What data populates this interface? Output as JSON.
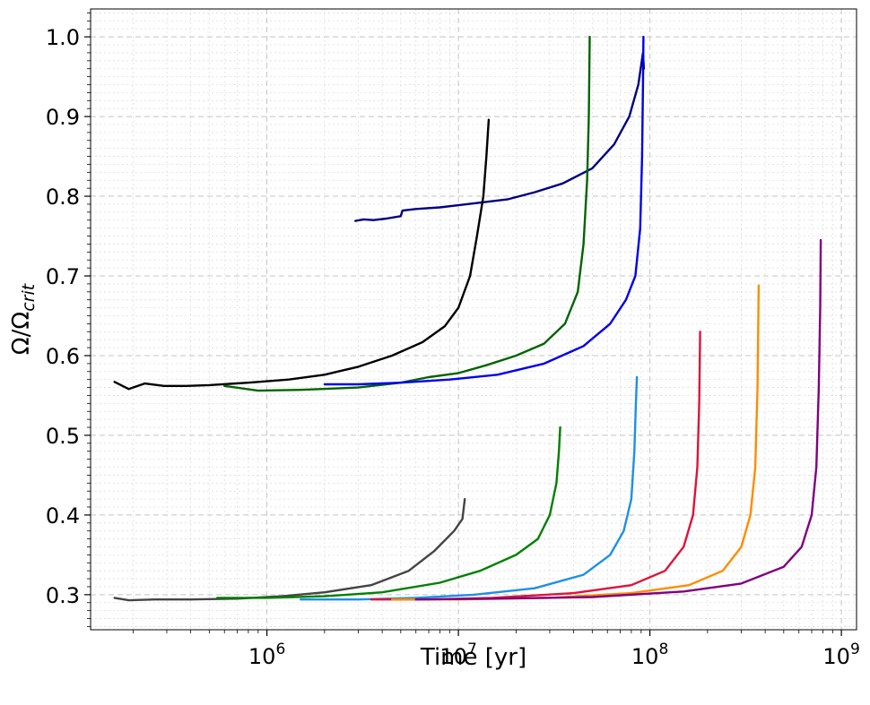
{
  "chart_data": {
    "type": "line",
    "xlabel": "Time [yr]",
    "ylabel": "Ω/Ω",
    "ylabel_sub": "crit",
    "xscale": "log",
    "xlim": [
      120000,
      1200000000
    ],
    "ylim": [
      0.256,
      1.035
    ],
    "grid": true,
    "x_ticks": [
      {
        "value": 1000000,
        "base": "10",
        "exp": "6"
      },
      {
        "value": 10000000,
        "base": "10",
        "exp": "7"
      },
      {
        "value": 100000000,
        "base": "10",
        "exp": "8"
      },
      {
        "value": 1000000000,
        "base": "10",
        "exp": "9"
      }
    ],
    "y_ticks": [
      {
        "value": 0.3,
        "label": "0.3"
      },
      {
        "value": 0.4,
        "label": "0.4"
      },
      {
        "value": 0.5,
        "label": "0.5"
      },
      {
        "value": 0.6,
        "label": "0.6"
      },
      {
        "value": 0.7,
        "label": "0.7"
      },
      {
        "value": 0.8,
        "label": "0.8"
      },
      {
        "value": 0.9,
        "label": "0.9"
      },
      {
        "value": 1.0,
        "label": "1.0"
      }
    ],
    "series": [
      {
        "color": "#000080",
        "points": [
          [
            2900000,
            0.769
          ],
          [
            3200000,
            0.771
          ],
          [
            3600000,
            0.77
          ],
          [
            4200000,
            0.772
          ],
          [
            5000000,
            0.775
          ],
          [
            5100000,
            0.782
          ],
          [
            6000000,
            0.784
          ],
          [
            8000000,
            0.786
          ],
          [
            12000000,
            0.791
          ],
          [
            18000000,
            0.796
          ],
          [
            25000000,
            0.805
          ],
          [
            35000000,
            0.816
          ],
          [
            50000000,
            0.835
          ],
          [
            65000000,
            0.865
          ],
          [
            78000000,
            0.9
          ],
          [
            87000000,
            0.94
          ],
          [
            92000000,
            0.98
          ],
          [
            93000000,
            0.96
          ]
        ]
      },
      {
        "color": "#000000",
        "points": [
          [
            160000,
            0.567
          ],
          [
            190000,
            0.558
          ],
          [
            230000,
            0.565
          ],
          [
            290000,
            0.562
          ],
          [
            380000,
            0.562
          ],
          [
            500000,
            0.563
          ],
          [
            800000,
            0.566
          ],
          [
            1300000,
            0.57
          ],
          [
            2000000,
            0.576
          ],
          [
            3000000,
            0.586
          ],
          [
            4500000,
            0.6
          ],
          [
            6500000,
            0.617
          ],
          [
            8500000,
            0.637
          ],
          [
            10000000,
            0.66
          ],
          [
            11500000,
            0.7
          ],
          [
            12500000,
            0.75
          ],
          [
            13500000,
            0.8
          ],
          [
            14000000,
            0.85
          ],
          [
            14400000,
            0.896
          ]
        ]
      },
      {
        "color": "#006400",
        "points": [
          [
            600000,
            0.562
          ],
          [
            900000,
            0.556
          ],
          [
            1500000,
            0.557
          ],
          [
            3000000,
            0.56
          ],
          [
            5000000,
            0.566
          ],
          [
            7000000,
            0.573
          ],
          [
            10000000,
            0.578
          ],
          [
            14000000,
            0.588
          ],
          [
            20000000,
            0.6
          ],
          [
            28000000,
            0.615
          ],
          [
            36000000,
            0.64
          ],
          [
            42000000,
            0.68
          ],
          [
            45000000,
            0.74
          ],
          [
            47000000,
            0.82
          ],
          [
            48000000,
            0.9
          ],
          [
            48500000,
            1.0
          ]
        ]
      },
      {
        "color": "#0000ee",
        "points": [
          [
            2000000,
            0.564
          ],
          [
            3000000,
            0.564
          ],
          [
            5000000,
            0.566
          ],
          [
            9000000,
            0.57
          ],
          [
            16000000,
            0.576
          ],
          [
            28000000,
            0.59
          ],
          [
            45000000,
            0.612
          ],
          [
            62000000,
            0.64
          ],
          [
            75000000,
            0.67
          ],
          [
            84000000,
            0.7
          ],
          [
            89000000,
            0.76
          ],
          [
            91000000,
            0.85
          ],
          [
            92000000,
            0.94
          ],
          [
            92500000,
            1.0
          ]
        ]
      },
      {
        "color": "#444444",
        "points": [
          [
            160000,
            0.296
          ],
          [
            190000,
            0.293
          ],
          [
            260000,
            0.294
          ],
          [
            400000,
            0.294
          ],
          [
            700000,
            0.295
          ],
          [
            1200000,
            0.298
          ],
          [
            2000000,
            0.303
          ],
          [
            3500000,
            0.312
          ],
          [
            5500000,
            0.33
          ],
          [
            7500000,
            0.355
          ],
          [
            9500000,
            0.38
          ],
          [
            10500000,
            0.395
          ],
          [
            10800000,
            0.42
          ]
        ]
      },
      {
        "color": "#008000",
        "points": [
          [
            550000,
            0.296
          ],
          [
            1000000,
            0.296
          ],
          [
            2000000,
            0.298
          ],
          [
            4000000,
            0.303
          ],
          [
            8000000,
            0.315
          ],
          [
            13000000,
            0.33
          ],
          [
            20000000,
            0.35
          ],
          [
            26000000,
            0.37
          ],
          [
            30000000,
            0.4
          ],
          [
            32500000,
            0.44
          ],
          [
            33500000,
            0.48
          ],
          [
            34000000,
            0.51
          ]
        ]
      },
      {
        "color": "#1e8fe6",
        "points": [
          [
            1500000,
            0.294
          ],
          [
            3000000,
            0.294
          ],
          [
            6000000,
            0.296
          ],
          [
            12000000,
            0.3
          ],
          [
            25000000,
            0.308
          ],
          [
            45000000,
            0.325
          ],
          [
            62000000,
            0.35
          ],
          [
            73000000,
            0.38
          ],
          [
            80000000,
            0.42
          ],
          [
            83000000,
            0.48
          ],
          [
            84500000,
            0.54
          ],
          [
            85500000,
            0.573
          ]
        ]
      },
      {
        "color": "#dc143c",
        "points": [
          [
            3500000,
            0.294
          ],
          [
            7000000,
            0.294
          ],
          [
            15000000,
            0.296
          ],
          [
            40000000,
            0.302
          ],
          [
            80000000,
            0.312
          ],
          [
            120000000,
            0.33
          ],
          [
            150000000,
            0.36
          ],
          [
            168000000,
            0.4
          ],
          [
            177000000,
            0.46
          ],
          [
            181000000,
            0.54
          ],
          [
            183000000,
            0.63
          ]
        ]
      },
      {
        "color": "#ff8c00",
        "points": [
          [
            4500000,
            0.294
          ],
          [
            10000000,
            0.294
          ],
          [
            30000000,
            0.296
          ],
          [
            80000000,
            0.302
          ],
          [
            160000000,
            0.312
          ],
          [
            240000000,
            0.33
          ],
          [
            300000000,
            0.36
          ],
          [
            335000000,
            0.4
          ],
          [
            355000000,
            0.46
          ],
          [
            365000000,
            0.56
          ],
          [
            370000000,
            0.688
          ]
        ]
      },
      {
        "color": "#800080",
        "points": [
          [
            6000000,
            0.294
          ],
          [
            15000000,
            0.295
          ],
          [
            50000000,
            0.297
          ],
          [
            150000000,
            0.304
          ],
          [
            300000000,
            0.314
          ],
          [
            500000000,
            0.335
          ],
          [
            620000000,
            0.36
          ],
          [
            700000000,
            0.4
          ],
          [
            740000000,
            0.46
          ],
          [
            762000000,
            0.56
          ],
          [
            775000000,
            0.66
          ],
          [
            780000000,
            0.745
          ]
        ]
      }
    ]
  }
}
